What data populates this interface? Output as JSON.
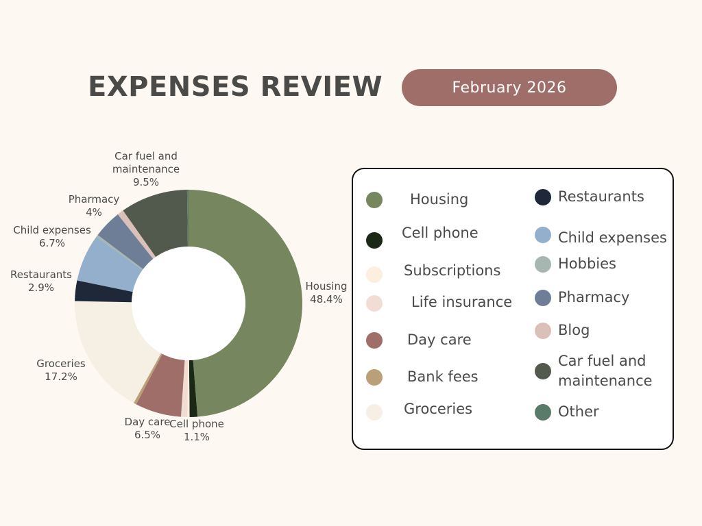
{
  "header": {
    "title": "EXPENSES REVIEW",
    "period": "February 2026"
  },
  "chart_data": {
    "type": "pie",
    "donut": true,
    "start_angle_deg": 0,
    "slices": [
      {
        "label": "Housing",
        "value": 48.4,
        "display": "48.4%",
        "color": "#76875f",
        "show_label": true
      },
      {
        "label": "Cell phone",
        "value": 1.1,
        "display": "1.1%",
        "color": "#1b2816",
        "show_label": true
      },
      {
        "label": "Subscriptions",
        "value": 0.3,
        "display": "",
        "color": "#fcefdf",
        "show_label": false
      },
      {
        "label": "Life insurance",
        "value": 0.9,
        "display": "",
        "color": "#f2ddd5",
        "show_label": false
      },
      {
        "label": "Day care",
        "value": 6.5,
        "display": "6.5%",
        "color": "#a06e69",
        "show_label": true
      },
      {
        "label": "Bank fees",
        "value": 0.4,
        "display": "",
        "color": "#baa079",
        "show_label": false
      },
      {
        "label": "Groceries",
        "value": 17.2,
        "display": "17.2%",
        "color": "#f6efe3",
        "show_label": true
      },
      {
        "label": "Restaurants",
        "value": 2.9,
        "display": "2.9%",
        "color": "#1f2839",
        "show_label": true
      },
      {
        "label": "Child expenses",
        "value": 6.7,
        "display": "6.7%",
        "color": "#94afcc",
        "show_label": true
      },
      {
        "label": "Hobbies",
        "value": 0.3,
        "display": "",
        "color": "#a8b6b2",
        "show_label": false
      },
      {
        "label": "Pharmacy",
        "value": 4,
        "display": "4%",
        "color": "#6d7e96",
        "show_label": true
      },
      {
        "label": "Blog",
        "value": 0.9,
        "display": "",
        "color": "#dac0b8",
        "show_label": false
      },
      {
        "label": "Car fuel and maintenance",
        "value": 9.5,
        "display": "9.5%",
        "color": "#525a4e",
        "show_label": true
      },
      {
        "label": "Other",
        "value": 0.2,
        "display": "",
        "color": "#5a7a6a",
        "show_label": false
      }
    ]
  },
  "legend": {
    "items": [
      {
        "label": "Housing",
        "color": "#76875f"
      },
      {
        "label": "Cell phone",
        "color": "#1b2816"
      },
      {
        "label": "Subscriptions",
        "color": "#fcefdf"
      },
      {
        "label": "Life insurance",
        "color": "#f2ddd5"
      },
      {
        "label": "Day care",
        "color": "#a06e69"
      },
      {
        "label": "Bank fees",
        "color": "#baa079"
      },
      {
        "label": "Groceries",
        "color": "#f6efe3"
      },
      {
        "label": "Restaurants",
        "color": "#1f2839"
      },
      {
        "label": "Child expenses",
        "color": "#94afcc"
      },
      {
        "label": "Hobbies",
        "color": "#a8b6b2"
      },
      {
        "label": "Pharmacy",
        "color": "#6d7e96"
      },
      {
        "label": "Blog",
        "color": "#dac0b8"
      },
      {
        "label": "Car fuel and\nmaintenance",
        "color": "#525a4e"
      },
      {
        "label": "Other",
        "color": "#5a7a6a"
      }
    ]
  }
}
